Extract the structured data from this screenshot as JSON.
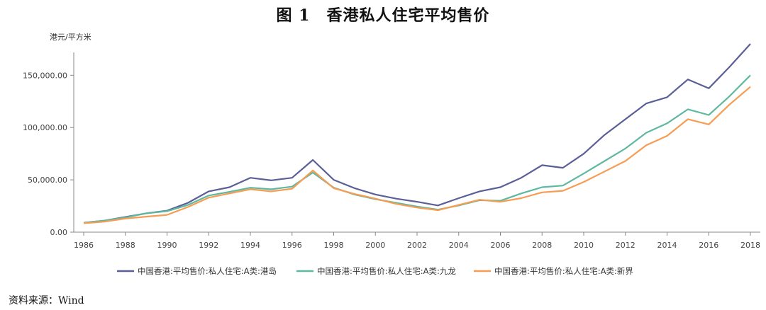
{
  "page": {
    "title": "图 1　香港私人住宅平均售价",
    "source": "资料来源：Wind"
  },
  "chart_data": {
    "type": "line",
    "ylabel": "港元/平方米",
    "ylim": [
      0,
      180000
    ],
    "yticks": [
      "0.00",
      "50,000.00",
      "100,000.00",
      "150,000.00"
    ],
    "ytick_values": [
      0,
      50000,
      100000,
      150000
    ],
    "xlim": [
      1986,
      2018
    ],
    "xticks": [
      "1986",
      "1988",
      "1990",
      "1992",
      "1994",
      "1996",
      "1998",
      "2000",
      "2002",
      "2004",
      "2006",
      "2008",
      "2010",
      "2012",
      "2014",
      "2016",
      "2018"
    ],
    "x": [
      1986,
      1987,
      1988,
      1989,
      1990,
      1991,
      1992,
      1993,
      1994,
      1995,
      1996,
      1997,
      1998,
      1999,
      2000,
      2001,
      2002,
      2003,
      2004,
      2005,
      2006,
      2007,
      2008,
      2009,
      2010,
      2011,
      2012,
      2013,
      2014,
      2015,
      2016,
      2017,
      2018
    ],
    "legend_position": "bottom",
    "grid": false,
    "series": [
      {
        "name": "中国香港:平均售价:私人住宅:A类:港岛",
        "color": "#5b5f97",
        "values": [
          9000,
          11000,
          14500,
          18000,
          20500,
          28000,
          39000,
          43000,
          52000,
          49500,
          52000,
          69000,
          50000,
          42000,
          36000,
          32000,
          29000,
          25500,
          32500,
          39000,
          43000,
          52000,
          64000,
          61500,
          75000,
          93000,
          108000,
          123000,
          129000,
          146000,
          137500,
          158000,
          180000
        ]
      },
      {
        "name": "中国香港:平均售价:私人住宅:A类:九龙",
        "color": "#5fb8a0",
        "values": [
          9000,
          11000,
          14000,
          18000,
          20000,
          26000,
          35000,
          38500,
          42500,
          41000,
          43500,
          57000,
          42500,
          36000,
          31500,
          28000,
          24500,
          21500,
          25500,
          30500,
          30000,
          37000,
          43000,
          44500,
          56000,
          68000,
          80000,
          95000,
          104000,
          117500,
          112000,
          130000,
          150000
        ]
      },
      {
        "name": "中国香港:平均售价:私人住宅:A类:新界",
        "color": "#f79c52",
        "values": [
          8500,
          10000,
          13000,
          14800,
          16500,
          24000,
          33000,
          37000,
          41000,
          39000,
          41500,
          59000,
          42000,
          36500,
          32000,
          27000,
          23500,
          21000,
          26000,
          31000,
          29000,
          32500,
          38000,
          39500,
          48000,
          58000,
          68000,
          83000,
          92000,
          108000,
          103000,
          122000,
          139000
        ]
      }
    ]
  }
}
